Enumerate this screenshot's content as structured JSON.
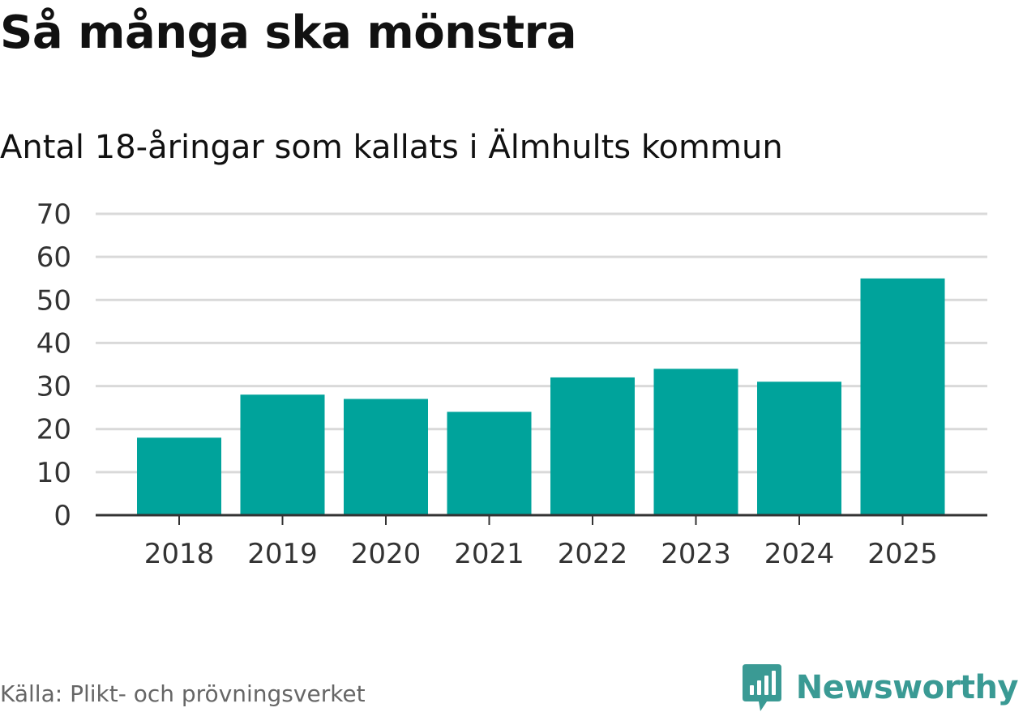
{
  "title": "Så många ska mönstra",
  "subtitle": "Antal 18-åringar som kallats i Älmhults kommun",
  "source": "Källa: Plikt- och prövningsverket",
  "brand": {
    "name": "Newsworthy",
    "logo_icon": "newsworthy-logo-icon",
    "color": "#3a9a94"
  },
  "colors": {
    "bar": "#00a39b",
    "grid": "#d9d9d9",
    "axis": "#333333",
    "tick_text": "#333333"
  },
  "chart_data": {
    "type": "bar",
    "title": "Så många ska mönstra",
    "subtitle": "Antal 18-åringar som kallats i Älmhults kommun",
    "xlabel": "",
    "ylabel": "",
    "categories": [
      "2018",
      "2019",
      "2020",
      "2021",
      "2022",
      "2023",
      "2024",
      "2025"
    ],
    "values": [
      18,
      28,
      27,
      24,
      32,
      34,
      31,
      55
    ],
    "ylim": [
      0,
      70
    ],
    "yticks": [
      0,
      10,
      20,
      30,
      40,
      50,
      60,
      70
    ],
    "grid": true,
    "legend": "none"
  }
}
